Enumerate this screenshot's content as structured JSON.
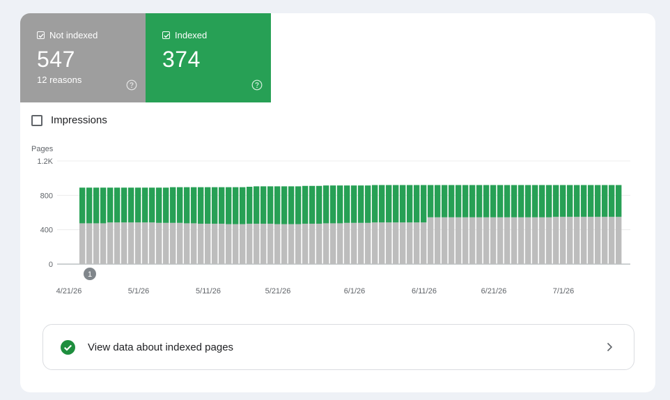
{
  "tiles": {
    "not_indexed": {
      "label": "Not indexed",
      "value": "547",
      "sub": "12 reasons",
      "color": "#9e9e9e",
      "checked": true
    },
    "indexed": {
      "label": "Indexed",
      "value": "374",
      "color": "#27a055",
      "checked": true
    }
  },
  "impressions": {
    "label": "Impressions",
    "checked": false
  },
  "chart_data": {
    "type": "bar",
    "stacked": true,
    "ylabel": "Pages",
    "ylim": [
      0,
      1200
    ],
    "yticks": [
      "0",
      "400",
      "800",
      "1.2K"
    ],
    "xticks": [
      "4/21/26",
      "5/1/26",
      "5/11/26",
      "5/21/26",
      "6/1/26",
      "6/11/26",
      "6/21/26",
      "7/1/26"
    ],
    "annotation": "1",
    "grid": true,
    "series": [
      {
        "color": "#bdbdbd",
        "values": [
          475,
          475,
          475,
          475,
          485,
          485,
          485,
          485,
          485,
          485,
          485,
          480,
          480,
          480,
          480,
          475,
          475,
          470,
          470,
          470,
          470,
          465,
          465,
          465,
          470,
          470,
          470,
          470,
          465,
          465,
          465,
          465,
          470,
          470,
          470,
          475,
          475,
          475,
          480,
          480,
          480,
          480,
          485,
          485,
          485,
          485,
          485,
          485,
          485,
          485,
          545,
          545,
          545,
          545,
          545,
          545,
          545,
          545,
          545,
          545,
          545,
          545,
          545,
          545,
          545,
          545,
          545,
          545,
          550,
          550,
          550,
          550,
          550,
          550,
          550,
          550,
          550,
          550
        ]
      },
      {
        "color": "#27a055",
        "values": [
          415,
          415,
          415,
          415,
          405,
          405,
          405,
          405,
          405,
          405,
          405,
          410,
          410,
          415,
          415,
          420,
          420,
          425,
          425,
          425,
          425,
          430,
          430,
          430,
          430,
          435,
          435,
          435,
          440,
          440,
          440,
          440,
          440,
          440,
          440,
          440,
          440,
          440,
          435,
          435,
          435,
          435,
          435,
          435,
          435,
          435,
          435,
          435,
          435,
          435,
          375,
          375,
          375,
          375,
          375,
          375,
          375,
          375,
          375,
          375,
          375,
          375,
          375,
          375,
          375,
          375,
          375,
          375,
          370,
          370,
          370,
          370,
          370,
          370,
          370,
          370,
          370,
          370
        ]
      }
    ]
  },
  "view_link": {
    "label": "View data about indexed pages"
  }
}
